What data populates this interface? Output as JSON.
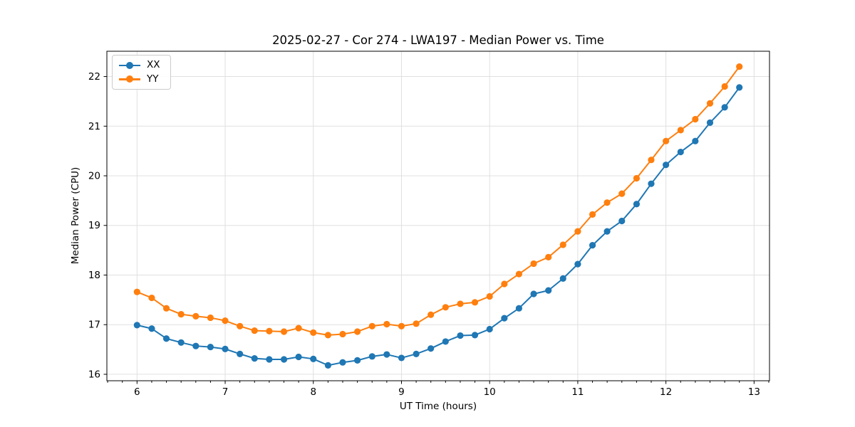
{
  "chart_data": {
    "type": "line",
    "title": "2025-02-27 - Cor 274 - LWA197 - Median Power vs. Time",
    "xlabel": "UT Time (hours)",
    "ylabel": "Median Power (CPU)",
    "xlim": [
      5.658,
      13.175
    ],
    "ylim": [
      15.87,
      22.51
    ],
    "xticks": [
      6,
      7,
      8,
      9,
      10,
      11,
      12,
      13
    ],
    "yticks": [
      16,
      17,
      18,
      19,
      20,
      21,
      22
    ],
    "x_minor_tick_step": 0.1667,
    "grid": true,
    "legend_position": "upper left",
    "x": [
      6.0,
      6.167,
      6.333,
      6.5,
      6.667,
      6.833,
      7.0,
      7.167,
      7.333,
      7.5,
      7.667,
      7.833,
      8.0,
      8.167,
      8.333,
      8.5,
      8.667,
      8.833,
      9.0,
      9.167,
      9.333,
      9.5,
      9.667,
      9.833,
      10.0,
      10.167,
      10.333,
      10.5,
      10.667,
      10.833,
      11.0,
      11.167,
      11.333,
      11.5,
      11.667,
      11.833,
      12.0,
      12.167,
      12.333,
      12.5,
      12.667,
      12.833
    ],
    "series": [
      {
        "name": "XX",
        "color": "#1f77b4",
        "values": [
          16.99,
          16.92,
          16.72,
          16.64,
          16.57,
          16.55,
          16.51,
          16.41,
          16.32,
          16.3,
          16.3,
          16.35,
          16.31,
          16.18,
          16.24,
          16.28,
          16.36,
          16.4,
          16.33,
          16.41,
          16.52,
          16.66,
          16.78,
          16.79,
          16.91,
          17.13,
          17.33,
          17.62,
          17.69,
          17.93,
          18.22,
          18.6,
          18.88,
          19.09,
          19.43,
          19.84,
          20.22,
          20.48,
          20.7,
          21.07,
          21.38,
          21.78
        ]
      },
      {
        "name": "YY",
        "color": "#ff7f0e",
        "values": [
          17.66,
          17.54,
          17.33,
          17.21,
          17.17,
          17.14,
          17.08,
          16.97,
          16.88,
          16.87,
          16.86,
          16.93,
          16.84,
          16.79,
          16.81,
          16.86,
          16.97,
          17.01,
          16.97,
          17.02,
          17.2,
          17.35,
          17.42,
          17.45,
          17.57,
          17.82,
          18.02,
          18.23,
          18.36,
          18.61,
          18.88,
          19.22,
          19.46,
          19.64,
          19.95,
          20.32,
          20.7,
          20.92,
          21.14,
          21.46,
          21.8,
          22.2
        ]
      }
    ]
  }
}
